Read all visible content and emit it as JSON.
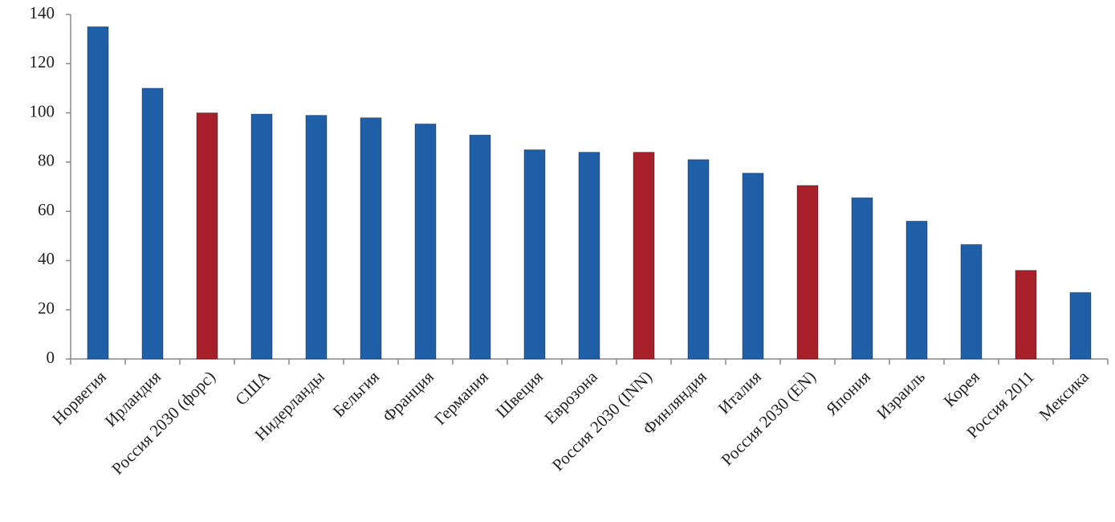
{
  "chart_data": {
    "type": "bar",
    "categories": [
      "Норвегия",
      "Ирландия",
      "Россия 2030 (форс)",
      "США",
      "Нидерланды",
      "Бельгия",
      "Франция",
      "Германия",
      "Швеция",
      "Еврозона",
      "Россия 2030 (INN)",
      "Финляндия",
      "Италия",
      "Россия 2030 (EN)",
      "Япония",
      "Израиль",
      "Корея",
      "Россия 2011",
      "Мексика"
    ],
    "values": [
      135,
      110,
      100,
      99.5,
      99,
      98,
      95.5,
      91,
      85,
      84,
      84,
      81,
      75.5,
      70.5,
      65.5,
      56,
      46.5,
      36,
      27
    ],
    "colors": [
      "#1f5fa8",
      "#1f5fa8",
      "#a8202a",
      "#1f5fa8",
      "#1f5fa8",
      "#1f5fa8",
      "#1f5fa8",
      "#1f5fa8",
      "#1f5fa8",
      "#1f5fa8",
      "#a8202a",
      "#1f5fa8",
      "#1f5fa8",
      "#a8202a",
      "#1f5fa8",
      "#1f5fa8",
      "#1f5fa8",
      "#a8202a",
      "#1f5fa8"
    ],
    "ylim": [
      0,
      140
    ],
    "yticks": [
      0,
      20,
      40,
      60,
      80,
      100,
      120,
      140
    ]
  }
}
